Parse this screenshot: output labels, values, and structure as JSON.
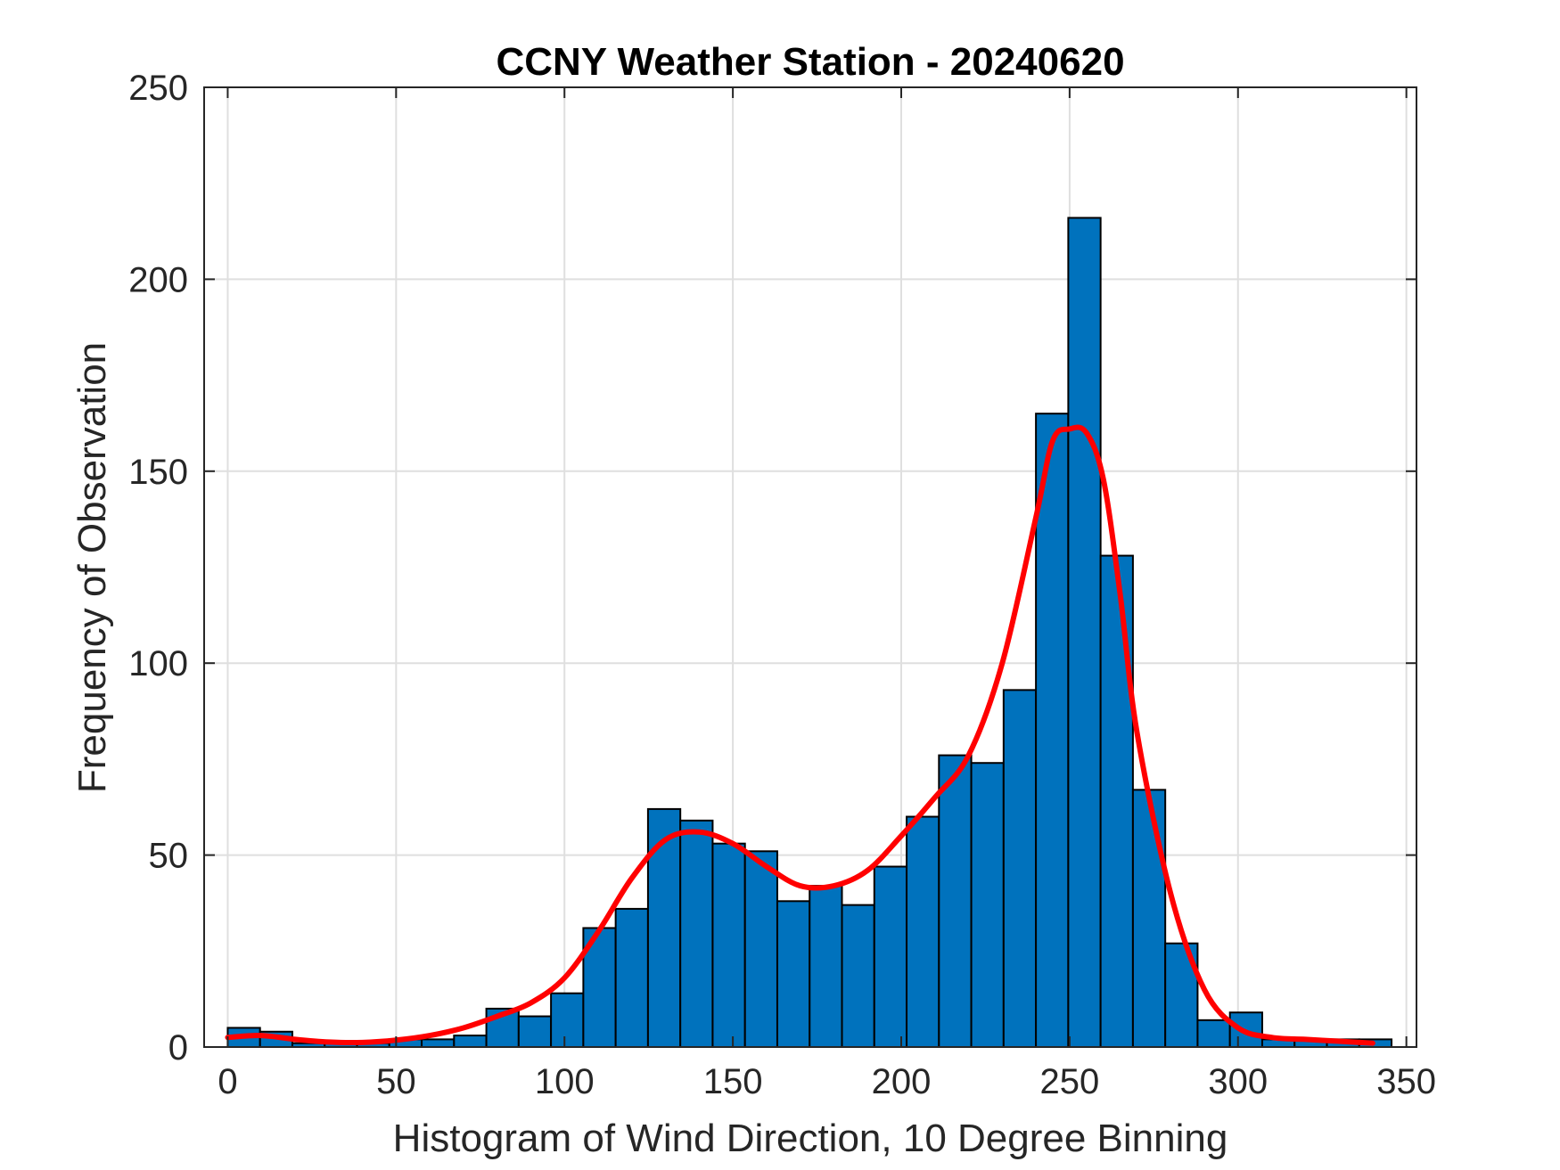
{
  "chart_data": {
    "type": "bar",
    "title": "CCNY Weather Station - 20240620",
    "xlabel": "Histogram of Wind Direction, 10 Degree Binning",
    "ylabel": "Frequency of Observation",
    "xlim": [
      -7,
      353
    ],
    "ylim": [
      0,
      250
    ],
    "xticks": [
      0,
      50,
      100,
      150,
      200,
      250,
      300,
      350
    ],
    "yticks": [
      0,
      50,
      100,
      150,
      200,
      250
    ],
    "grid": true,
    "bin_width": 9.6,
    "bin_centers": [
      4.8,
      14.4,
      24,
      33.6,
      43.2,
      52.8,
      62.4,
      72,
      81.6,
      91.2,
      100.8,
      110.4,
      120,
      129.6,
      139.2,
      148.8,
      158.4,
      168,
      177.6,
      187.2,
      196.8,
      206.4,
      216,
      225.6,
      235.2,
      244.8,
      254.4,
      264,
      273.6,
      283.2,
      292.8,
      302.4,
      312,
      321.6,
      331.2,
      340.8
    ],
    "series": [
      {
        "name": "Histogram",
        "color": "#0072bd",
        "values": [
          5,
          4,
          1,
          1,
          1,
          2,
          2,
          3,
          10,
          8,
          14,
          31,
          36,
          62,
          59,
          53,
          51,
          38,
          42,
          37,
          47,
          60,
          76,
          74,
          93,
          165,
          216,
          128,
          67,
          27,
          7,
          9,
          2,
          2,
          2,
          2
        ]
      },
      {
        "name": "Density fit",
        "color": "#ff0000",
        "x": [
          0,
          10,
          20,
          30,
          40,
          50,
          60,
          70,
          80,
          90,
          100,
          110,
          120,
          130,
          140,
          150,
          160,
          170,
          180,
          190,
          200,
          210,
          220,
          230,
          240,
          245,
          250,
          255,
          260,
          265,
          270,
          280,
          290,
          300,
          310,
          320,
          330,
          340
        ],
        "values": [
          2.5,
          3,
          2,
          1.3,
          1.2,
          1.8,
          3,
          5,
          8,
          11.5,
          18,
          30,
          44,
          54,
          56,
          53,
          47,
          42,
          42,
          46,
          55,
          65,
          76,
          100,
          138,
          158,
          161,
          160,
          148,
          118,
          82,
          40,
          15,
          5,
          2.5,
          2,
          1.5,
          1
        ]
      }
    ]
  }
}
